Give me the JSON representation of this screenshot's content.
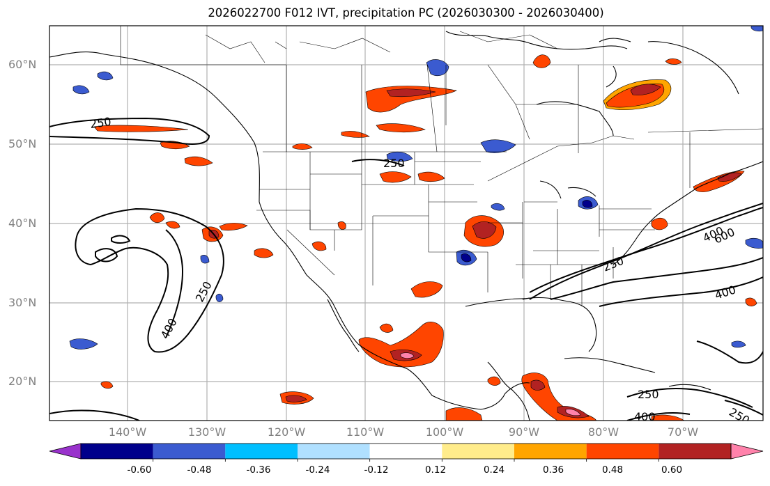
{
  "title": "2026022700 F012 IVT, precipitation PC (2026030300 - 2026030400)",
  "lat_labels": [
    "60°N",
    "50°N",
    "40°N",
    "30°N",
    "20°N"
  ],
  "lon_labels": [
    "140°W",
    "130°W",
    "120°W",
    "110°W",
    "100°W",
    "90°W",
    "80°W",
    "70°W"
  ],
  "contour_labels": [
    "250",
    "250",
    "250",
    "400",
    "250",
    "400",
    "600",
    "400",
    "250",
    "400",
    "250"
  ],
  "colorbar": {
    "colors": [
      "#9932cc",
      "#00008b",
      "#3b5bd0",
      "#00bfff",
      "#b0e0ff",
      "#ffffff",
      "#ffec8b",
      "#ffa500",
      "#ff4500",
      "#b22222",
      "#ff82ab"
    ],
    "tick_labels": [
      "-0.60",
      "-0.48",
      "-0.36",
      "-0.24",
      "-0.12",
      "0.12",
      "0.24",
      "0.36",
      "0.48",
      "0.60"
    ]
  },
  "colors": {
    "grid": "#b0b0b0",
    "coast": "#000000",
    "axis_label": "#808080"
  }
}
